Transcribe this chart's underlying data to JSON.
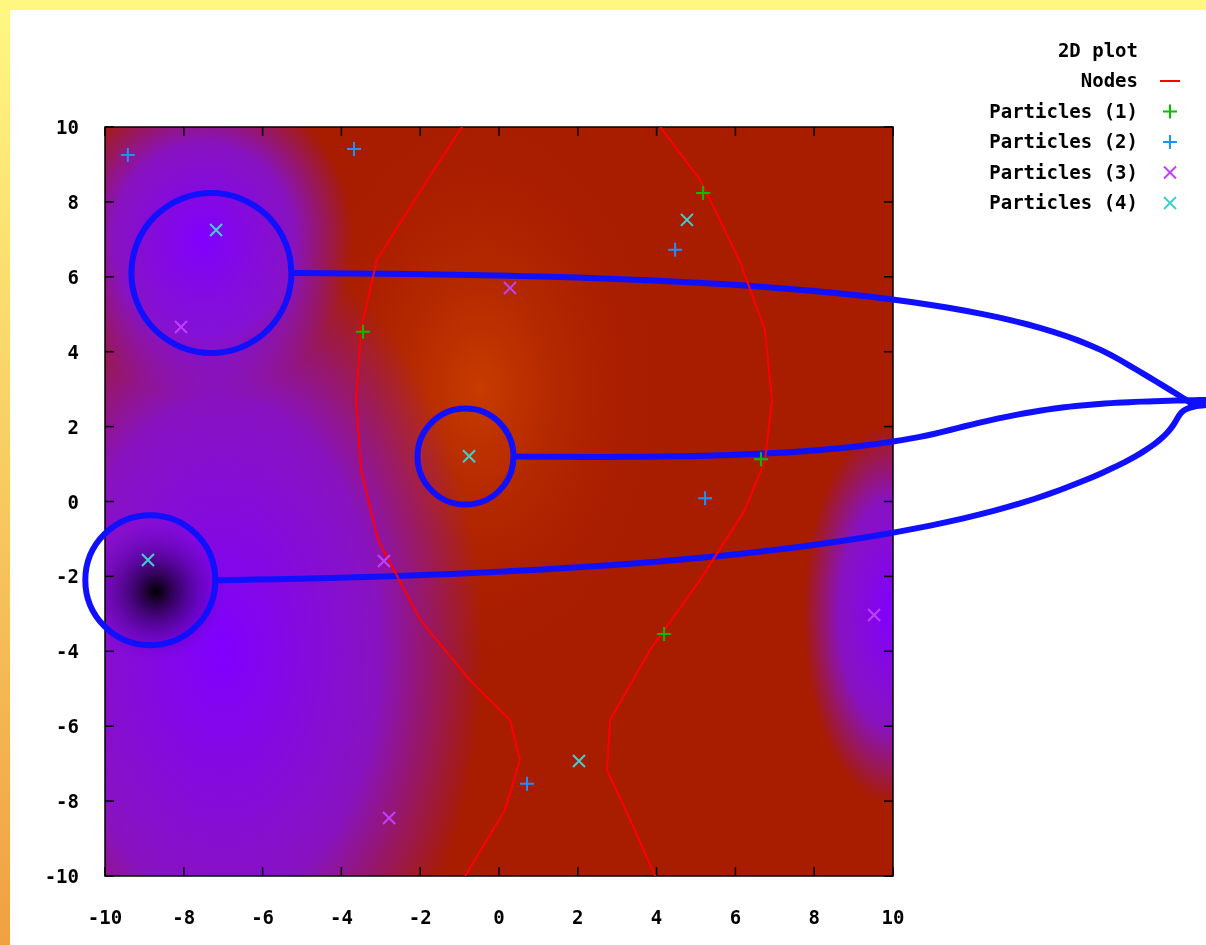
{
  "chart_data": {
    "type": "scatter",
    "title": "2D plot",
    "legend": "top right",
    "grid": false,
    "xlim": [
      -10,
      10
    ],
    "ylim": [
      -10,
      10
    ],
    "xticks": [
      -10,
      -8,
      -6,
      -4,
      -2,
      0,
      2,
      4,
      6,
      8,
      10
    ],
    "yticks": [
      -10,
      -8,
      -6,
      -4,
      -2,
      0,
      2,
      4,
      6,
      8,
      10
    ],
    "series": [
      {
        "name": "Nodes",
        "type": "line",
        "color": "#ff0000",
        "x": [
          -0.94,
          -1.75,
          -3.1,
          -3.5,
          -3.63,
          -3.5,
          -3.07,
          -2.0,
          -0.74,
          0.28,
          0.53,
          0.15,
          -0.86,
          null,
          4.09,
          5.1,
          6.1,
          6.75,
          6.93,
          6.75,
          6.24,
          5.1,
          3.83,
          2.82,
          2.74,
          3.33,
          3.96
        ],
        "values": [
          10,
          8.7,
          6.45,
          4.6,
          2.7,
          0.84,
          -1.03,
          -3.16,
          -4.77,
          -5.83,
          -6.9,
          -8.24,
          -10,
          null,
          10,
          8.6,
          6.45,
          4.58,
          2.71,
          1.1,
          -0.23,
          -2.1,
          -3.97,
          -5.83,
          -7.17,
          -8.5,
          -10
        ]
      },
      {
        "name": "Particles (1)",
        "color": "#00c000",
        "marker": "plus",
        "x": [
          5.18,
          -3.45,
          6.65,
          4.19
        ],
        "values": [
          8.24,
          4.53,
          1.13,
          -3.54
        ]
      },
      {
        "name": "Particles (2)",
        "color": "#1e90ff",
        "marker": "plus",
        "x": [
          -9.42,
          -3.68,
          4.47,
          5.23,
          0.71
        ],
        "values": [
          9.25,
          9.41,
          6.72,
          0.09,
          -7.54
        ]
      },
      {
        "name": "Particles (3)",
        "color": "#c040ff",
        "marker": "cross",
        "x": [
          -8.07,
          0.28,
          -2.92,
          -2.79,
          9.52
        ],
        "values": [
          4.66,
          5.7,
          -1.59,
          -8.45,
          -3.03
        ]
      },
      {
        "name": "Particles (4)",
        "color": "#40d0d0",
        "marker": "cross",
        "x": [
          -7.18,
          4.77,
          -0.76,
          -8.91,
          2.03
        ],
        "values": [
          7.25,
          7.52,
          1.21,
          -1.56,
          -6.93
        ]
      }
    ]
  }
}
